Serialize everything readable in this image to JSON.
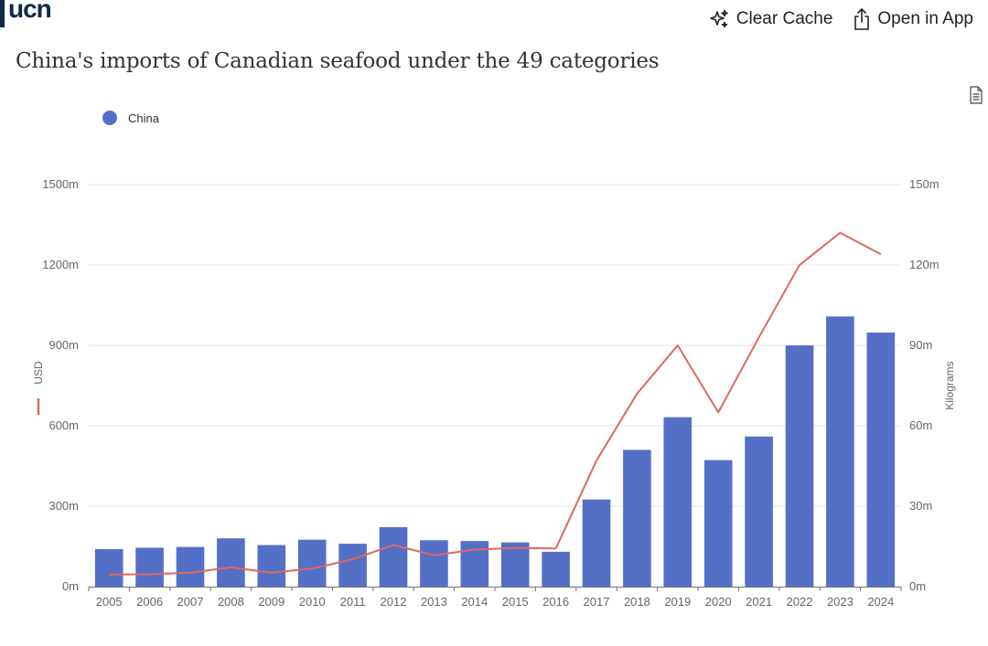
{
  "header": {
    "logo": "ucn",
    "clear_cache_label": "Clear Cache",
    "open_in_app_label": "Open in App"
  },
  "page_title": "China's imports of Canadian seafood under the 49 categories",
  "icons": {
    "clear_cache": "sparkle-icon",
    "open_in_app": "share-icon",
    "data_view": "document-icon"
  },
  "colors": {
    "bar": "#5470c6",
    "line": "#e0675f",
    "grid": "#e6e6e6",
    "logo": "#0f2a44"
  },
  "chart_data": {
    "type": "bar",
    "title": "China's imports of Canadian seafood under the 49 categories",
    "legend": {
      "position": "top-left",
      "entries": [
        "China"
      ]
    },
    "categories": [
      "2005",
      "2006",
      "2007",
      "2008",
      "2009",
      "2010",
      "2011",
      "2012",
      "2013",
      "2014",
      "2015",
      "2016",
      "2017",
      "2018",
      "2019",
      "2020",
      "2021",
      "2022",
      "2023",
      "2024"
    ],
    "series": [
      {
        "name": "China",
        "type": "bar",
        "axis": "left",
        "values": [
          140,
          145,
          148,
          180,
          155,
          175,
          160,
          222,
          173,
          170,
          165,
          130,
          325,
          510,
          632,
          472,
          560,
          900,
          1008,
          948
        ]
      },
      {
        "type": "line",
        "axis": "right",
        "values": [
          4.5,
          4.6,
          5.2,
          7.2,
          5.2,
          6.7,
          10.2,
          15.5,
          11.7,
          13.8,
          14.4,
          14.2,
          47,
          72,
          90,
          65,
          93,
          120,
          132,
          124
        ]
      }
    ],
    "y_left": {
      "label": "USD",
      "range": [
        0,
        1500
      ],
      "ticks": [
        0,
        300,
        600,
        900,
        1200,
        1500
      ],
      "tick_labels": [
        "0m",
        "300m",
        "600m",
        "900m",
        "1200m",
        "1500m"
      ]
    },
    "y_right": {
      "label": "Kilograms",
      "range": [
        0,
        150
      ],
      "ticks": [
        0,
        30,
        60,
        90,
        120,
        150
      ],
      "tick_labels": [
        "0m",
        "30m",
        "60m",
        "90m",
        "120m",
        "150m"
      ]
    },
    "grid": true
  }
}
